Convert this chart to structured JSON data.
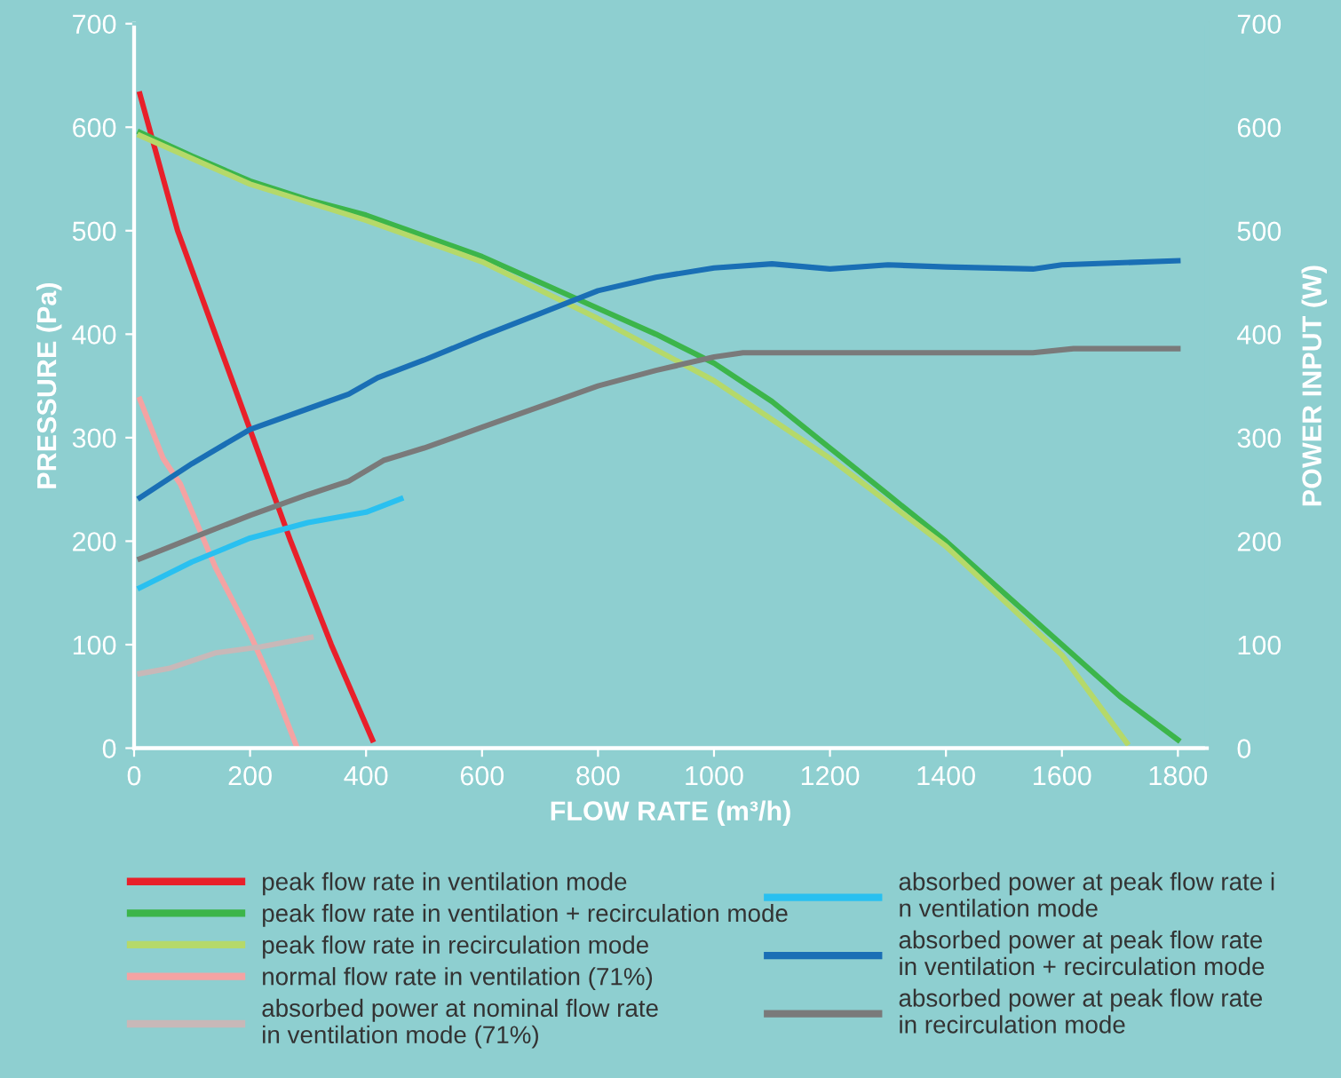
{
  "chart_data": {
    "type": "line",
    "xlabel": "FLOW RATE (m³/h)",
    "ylabel": "PRESSURE (Pa)",
    "y2label": "POWER INPUT (W)",
    "xlim": [
      0,
      1850
    ],
    "xticks": [
      0,
      200,
      400,
      600,
      800,
      1000,
      1200,
      1400,
      1600,
      1800
    ],
    "ylim": [
      0,
      700
    ],
    "yticks": [
      0,
      100,
      200,
      300,
      400,
      500,
      600,
      700
    ],
    "y2lim": [
      0,
      700
    ],
    "y2ticks": [
      0,
      100,
      200,
      300,
      400,
      500,
      600,
      700
    ],
    "grid": false,
    "legend": "bottom",
    "line_style": "solid",
    "marker": "none",
    "series": [
      {
        "name": "peak flow rate in ventilation mode",
        "color": "#e8202a",
        "x": [
          10,
          75,
          140,
          205,
          270,
          340,
          411
        ],
        "values": [
          632,
          500,
          400,
          300,
          200,
          100,
          8
        ]
      },
      {
        "name": "peak flow rate in ventilation + recirculation mode",
        "color": "#3cb54a",
        "x": [
          10,
          100,
          200,
          300,
          400,
          500,
          600,
          700,
          800,
          900,
          1000,
          1100,
          1200,
          1300,
          1400,
          1500,
          1600,
          1700,
          1800
        ],
        "values": [
          595,
          572,
          548,
          530,
          515,
          495,
          475,
          450,
          425,
          400,
          372,
          335,
          290,
          245,
          200,
          150,
          100,
          50,
          8
        ]
      },
      {
        "name": "peak flow rate in recirculation mode",
        "color": "#b5d96a",
        "x": [
          10,
          200,
          400,
          600,
          800,
          1000,
          1200,
          1400,
          1600,
          1712
        ],
        "values": [
          592,
          545,
          510,
          470,
          415,
          355,
          280,
          195,
          90,
          5
        ]
      },
      {
        "name": "normal flow rate in ventilation (71%)",
        "color": "#f4a3a3",
        "x": [
          10,
          50,
          80,
          140,
          200,
          240,
          280
        ],
        "values": [
          337,
          280,
          255,
          175,
          110,
          60,
          2
        ]
      },
      {
        "name": "absorbed power at nominal flow rate\nin ventilation mode (71%)",
        "color": "#c8b8b8",
        "axis": "y2",
        "x": [
          10,
          60,
          140,
          220,
          305
        ],
        "values": [
          72,
          77,
          92,
          98,
          107
        ]
      },
      {
        "name": "absorbed power at peak flow rate i\nn ventilation mode",
        "color": "#29c0f0",
        "axis": "y2",
        "x": [
          10,
          100,
          200,
          300,
          400,
          460
        ],
        "values": [
          155,
          180,
          203,
          218,
          228,
          241
        ]
      },
      {
        "name": "absorbed power at peak flow rate\nin ventilation + recirculation mode",
        "color": "#1a6fb5",
        "axis": "y2",
        "x": [
          10,
          100,
          200,
          300,
          370,
          420,
          500,
          600,
          700,
          800,
          900,
          1000,
          1100,
          1200,
          1300,
          1400,
          1550,
          1600,
          1800
        ],
        "values": [
          242,
          275,
          308,
          328,
          342,
          358,
          375,
          398,
          420,
          442,
          455,
          464,
          468,
          463,
          467,
          465,
          463,
          467,
          471
        ]
      },
      {
        "name": "absorbed power at peak flow rate\nin recirculation mode",
        "color": "#7a7a7a",
        "axis": "y2",
        "x": [
          10,
          100,
          200,
          300,
          370,
          430,
          500,
          600,
          700,
          800,
          900,
          1000,
          1050,
          1200,
          1550,
          1620,
          1800
        ],
        "values": [
          183,
          203,
          225,
          245,
          258,
          278,
          290,
          310,
          330,
          350,
          365,
          378,
          382,
          382,
          382,
          386,
          386
        ]
      }
    ]
  }
}
